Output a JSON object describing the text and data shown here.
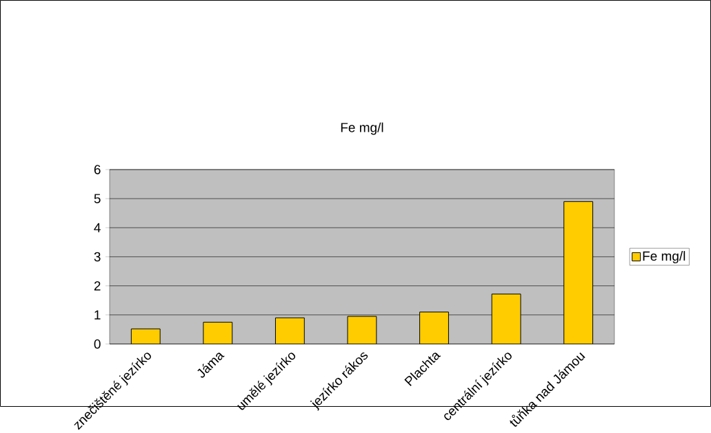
{
  "chart_data": {
    "type": "bar",
    "title": "Fe mg/l",
    "categories": [
      "znečištěné jezírko",
      "Jáma",
      "umělé jezírko",
      "jezírko rákos",
      "Plachta",
      "centrální jezírko",
      "tůňka nad Jámou"
    ],
    "series": [
      {
        "name": "Fe mg/l",
        "color": "#ffcc00",
        "values": [
          0.52,
          0.75,
          0.9,
          0.95,
          1.1,
          1.72,
          4.9
        ]
      }
    ],
    "ylim": [
      0,
      6
    ],
    "yticks": [
      0,
      1,
      2,
      3,
      4,
      5,
      6
    ],
    "grid": "y",
    "legend": "right"
  }
}
